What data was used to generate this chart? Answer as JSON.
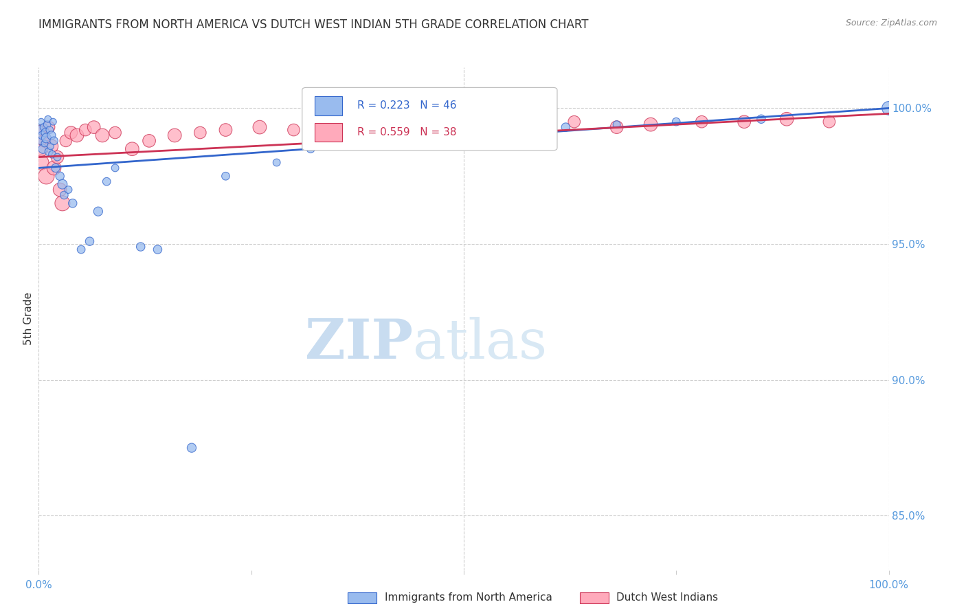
{
  "title": "IMMIGRANTS FROM NORTH AMERICA VS DUTCH WEST INDIAN 5TH GRADE CORRELATION CHART",
  "source": "Source: ZipAtlas.com",
  "ylabel": "5th Grade",
  "yticks": [
    85.0,
    90.0,
    95.0,
    100.0
  ],
  "ytick_labels": [
    "85.0%",
    "90.0%",
    "95.0%",
    "100.0%"
  ],
  "xlim": [
    0.0,
    1.0
  ],
  "ylim": [
    83.0,
    101.5
  ],
  "blue_color": "#99BBEE",
  "pink_color": "#FFAABB",
  "blue_line_color": "#3366CC",
  "pink_line_color": "#CC3355",
  "legend_blue_label": "R = 0.223   N = 46",
  "legend_pink_label": "R = 0.559   N = 38",
  "legend_bottom_blue": "Immigrants from North America",
  "legend_bottom_pink": "Dutch West Indians",
  "blue_scatter_x": [
    0.001,
    0.002,
    0.003,
    0.004,
    0.005,
    0.006,
    0.007,
    0.008,
    0.009,
    0.01,
    0.011,
    0.012,
    0.013,
    0.014,
    0.015,
    0.016,
    0.017,
    0.018,
    0.02,
    0.022,
    0.025,
    0.028,
    0.03,
    0.035,
    0.04,
    0.05,
    0.06,
    0.07,
    0.08,
    0.09,
    0.12,
    0.14,
    0.18,
    0.22,
    0.28,
    0.32,
    0.38,
    0.42,
    0.48,
    0.52,
    0.58,
    0.62,
    0.68,
    0.75,
    0.85,
    1.0
  ],
  "blue_scatter_y": [
    99.2,
    98.8,
    99.5,
    99.0,
    98.5,
    99.3,
    98.7,
    99.1,
    98.9,
    99.4,
    99.6,
    98.4,
    99.2,
    98.6,
    99.0,
    98.3,
    99.5,
    98.8,
    97.8,
    98.2,
    97.5,
    97.2,
    96.8,
    97.0,
    96.5,
    94.8,
    95.1,
    96.2,
    97.3,
    97.8,
    94.9,
    94.8,
    87.5,
    97.5,
    98.0,
    98.5,
    99.0,
    99.0,
    99.2,
    99.3,
    99.1,
    99.3,
    99.4,
    99.5,
    99.6,
    100.0
  ],
  "blue_scatter_sizes": [
    80,
    60,
    50,
    70,
    90,
    60,
    50,
    80,
    100,
    60,
    50,
    70,
    60,
    50,
    80,
    60,
    50,
    70,
    80,
    60,
    80,
    100,
    70,
    60,
    80,
    70,
    80,
    90,
    70,
    60,
    80,
    80,
    90,
    70,
    60,
    70,
    80,
    90,
    70,
    60,
    70,
    80,
    60,
    70,
    80,
    200
  ],
  "pink_scatter_x": [
    0.001,
    0.002,
    0.003,
    0.005,
    0.007,
    0.009,
    0.012,
    0.015,
    0.018,
    0.022,
    0.025,
    0.028,
    0.032,
    0.038,
    0.045,
    0.055,
    0.065,
    0.075,
    0.09,
    0.11,
    0.13,
    0.16,
    0.19,
    0.22,
    0.26,
    0.3,
    0.35,
    0.4,
    0.45,
    0.52,
    0.58,
    0.63,
    0.68,
    0.72,
    0.78,
    0.83,
    0.88,
    0.93
  ],
  "pink_scatter_y": [
    98.5,
    99.0,
    98.0,
    99.2,
    98.8,
    97.5,
    99.3,
    98.6,
    97.8,
    98.2,
    97.0,
    96.5,
    98.8,
    99.1,
    99.0,
    99.2,
    99.3,
    99.0,
    99.1,
    98.5,
    98.8,
    99.0,
    99.1,
    99.2,
    99.3,
    99.2,
    99.3,
    99.4,
    99.3,
    99.4,
    99.4,
    99.5,
    99.3,
    99.4,
    99.5,
    99.5,
    99.6,
    99.5
  ],
  "pink_scatter_sizes": [
    300,
    200,
    250,
    150,
    180,
    280,
    160,
    200,
    220,
    180,
    200,
    250,
    160,
    180,
    200,
    160,
    180,
    200,
    160,
    200,
    180,
    200,
    160,
    180,
    200,
    160,
    180,
    200,
    160,
    180,
    200,
    160,
    180,
    200,
    160,
    180,
    200,
    160
  ],
  "blue_trendline_x": [
    0.0,
    1.0
  ],
  "blue_trendline_y": [
    97.8,
    100.0
  ],
  "pink_trendline_x": [
    0.0,
    1.0
  ],
  "pink_trendline_y": [
    98.2,
    99.8
  ],
  "watermark_zip": "ZIP",
  "watermark_atlas": "atlas",
  "background_color": "#FFFFFF",
  "grid_color": "#CCCCCC",
  "title_color": "#333333",
  "tick_color": "#5599DD"
}
